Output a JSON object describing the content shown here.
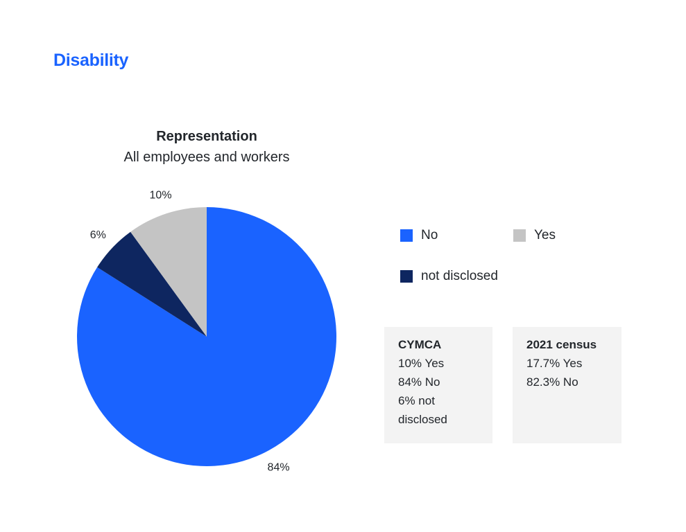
{
  "page": {
    "section_title": "Disability"
  },
  "chart_data": {
    "type": "pie",
    "title": "Representation",
    "subtitle": "All employees and workers",
    "categories": [
      "No",
      "Yes",
      "not disclosed"
    ],
    "values": [
      84,
      10,
      6
    ],
    "labels": [
      "84%",
      "10%",
      "6%"
    ],
    "colors": {
      "No": "#1a63ff",
      "Yes": "#c4c4c4",
      "not disclosed": "#0e2660"
    },
    "legend_position": "right"
  },
  "comparison": {
    "cymca": {
      "title": "CYMCA",
      "lines": [
        "10% Yes",
        "84% No",
        "6% not",
        "disclosed"
      ]
    },
    "census": {
      "title": "2021 census",
      "lines": [
        "17.7% Yes",
        "82.3% No"
      ]
    }
  }
}
